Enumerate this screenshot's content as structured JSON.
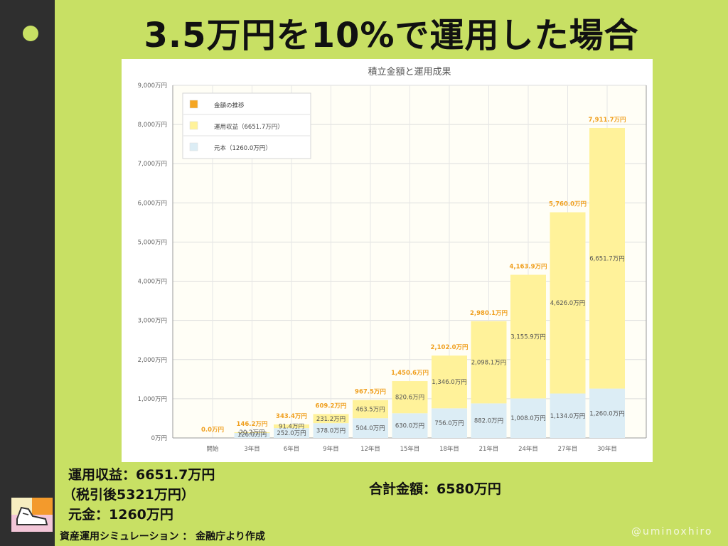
{
  "title": "3.5万円を10%で運用した場合",
  "summary": {
    "earnings": "運用収益：6651.7万円",
    "after_tax": "（税引後5321万円）",
    "principal": "元金：1260万円",
    "total": "合計金額：6580万円"
  },
  "source": "資産運用シミュレーション ： 金融庁より作成",
  "credit": "@uminoxhiro",
  "colors": {
    "background": "#c8e064",
    "sidebar": "#2f2f2f",
    "principal": "#dcedf5",
    "earnings": "#fff29a",
    "total_label": "#f0a020"
  },
  "chart_data": {
    "type": "bar",
    "stacked": true,
    "title": "積立金額と運用成果",
    "categories": [
      "開始",
      "3年目",
      "6年目",
      "9年目",
      "12年目",
      "15年目",
      "18年目",
      "21年目",
      "24年目",
      "27年目",
      "30年目"
    ],
    "ylim": [
      0,
      9000
    ],
    "yticks": [
      0,
      1000,
      2000,
      3000,
      4000,
      5000,
      6000,
      7000,
      8000,
      9000
    ],
    "ytick_labels": [
      "0万円",
      "1,000万円",
      "2,000万円",
      "3,000万円",
      "4,000万円",
      "5,000万円",
      "6,000万円",
      "7,000万円",
      "8,000万円",
      "9,000万円"
    ],
    "legend_position": "top-left",
    "legend": [
      "金額の推移",
      "運用収益（6651.7万円）",
      "元本（1260.0万円）"
    ],
    "series": [
      {
        "name": "元本（1260.0万円）",
        "values": [
          0,
          126,
          252,
          378,
          504,
          630,
          756,
          882,
          1008,
          1134,
          1260
        ],
        "labels": [
          "",
          "126.0万円",
          "252.0万円",
          "378.0万円",
          "504.0万円",
          "630.0万円",
          "756.0万円",
          "882.0万円",
          "1,008.0万円",
          "1,134.0万円",
          "1,260.0万円"
        ]
      },
      {
        "name": "運用収益（6651.7万円）",
        "values": [
          0,
          20.2,
          91.4,
          231.2,
          463.5,
          820.6,
          1346.0,
          2098.1,
          3155.9,
          4626.0,
          6651.7
        ],
        "labels": [
          "",
          "20.2万円",
          "91.4万円",
          "231.2万円",
          "463.5万円",
          "820.6万円",
          "1,346.0万円",
          "2,098.1万円",
          "3,155.9万円",
          "4,626.0万円",
          "6,651.7万円"
        ]
      }
    ],
    "totals": [
      0,
      146.2,
      343.4,
      609.2,
      967.5,
      1450.6,
      2102.0,
      2980.1,
      4163.9,
      5760.0,
      7911.7
    ],
    "total_labels": [
      "0.0万円",
      "146.2万円",
      "343.4万円",
      "609.2万円",
      "967.5万円",
      "1,450.6万円",
      "2,102.0万円",
      "2,980.1万円",
      "4,163.9万円",
      "5,760.0万円",
      "7,911.7万円"
    ]
  }
}
